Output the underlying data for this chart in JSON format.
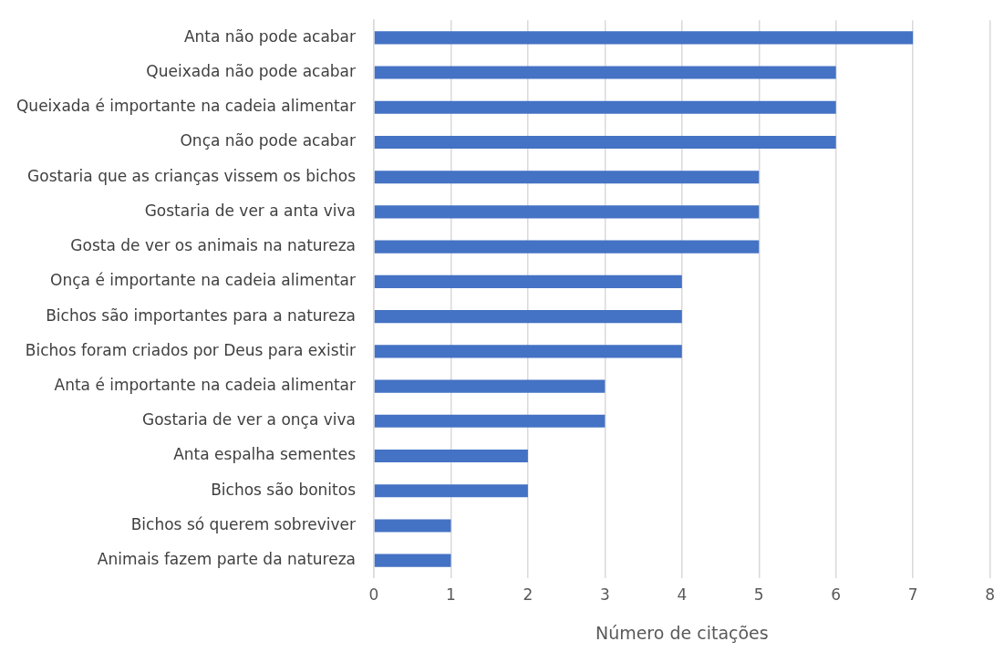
{
  "chart_data": {
    "type": "bar",
    "orientation": "horizontal",
    "xlabel": "Número de citações",
    "categories": [
      "Anta não pode acabar",
      "Queixada não pode acabar",
      "Queixada é importante na cadeia alimentar",
      "Onça não pode acabar",
      "Gostaria que as crianças vissem os bichos",
      "Gostaria de ver a anta viva",
      "Gosta de ver os animais na natureza",
      "Onça é importante na cadeia alimentar",
      "Bichos são importantes para a natureza",
      "Bichos foram criados por Deus para existir",
      "Anta é importante na cadeia alimentar",
      "Gostaria de ver a onça viva",
      "Anta espalha sementes",
      "Bichos são bonitos",
      "Bichos só querem sobreviver",
      "Animais fazem parte da natureza"
    ],
    "values": [
      7,
      6,
      6,
      6,
      5,
      5,
      5,
      4,
      4,
      4,
      3,
      3,
      2,
      2,
      1,
      1
    ],
    "color": "#4472c4",
    "xlim": [
      0,
      8
    ],
    "xticks": [
      0,
      1,
      2,
      3,
      4,
      5,
      6,
      7,
      8
    ],
    "grid": "x",
    "legend": false
  }
}
